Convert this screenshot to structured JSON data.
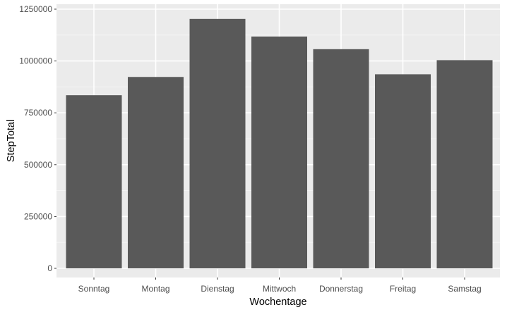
{
  "chart_data": {
    "type": "bar",
    "title": "",
    "xlabel": "Wochentage",
    "ylabel": "StepTotal",
    "categories": [
      "Sonntag",
      "Montag",
      "Dienstag",
      "Mittwoch",
      "Donnerstag",
      "Freitag",
      "Samstag"
    ],
    "values": [
      835000,
      923000,
      1203000,
      1118000,
      1057000,
      936000,
      1004000
    ],
    "ylim": [
      0,
      1250000
    ],
    "yticks": [
      "0",
      "250000",
      "500000",
      "750000",
      "1000000",
      "1250000"
    ],
    "grid": true,
    "legend": "none"
  },
  "colors": {
    "bar": "#595959",
    "panel_background": "#ebebeb",
    "gridline_major": "#ffffff",
    "gridline_minor": "#f5f5f5"
  }
}
